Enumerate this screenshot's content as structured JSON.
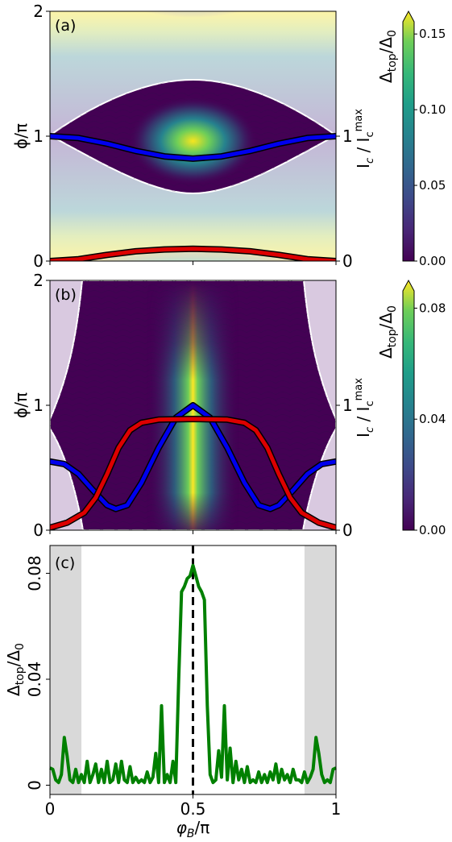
{
  "chart_data": [
    {
      "panel": "(a)",
      "type": "heatmap",
      "ylabel_left": "ϕ/π",
      "ylabel_right": "I_c / I_c^max",
      "x_range": [
        0,
        1
      ],
      "y_range": [
        0,
        2
      ],
      "y_ticks_left": [
        "0",
        "1",
        "2"
      ],
      "y_ticks_right": [
        "0",
        "1"
      ],
      "colorbar": {
        "label": "Δtop/Δ0",
        "min": 0,
        "max": 0.165,
        "ticks": [
          "0.00",
          "0.05",
          "0.10",
          "0.15"
        ],
        "tick_values": [
          0,
          0.05,
          0.1,
          0.15
        ],
        "extend": "max"
      },
      "series": [
        {
          "color": "#0000ee",
          "x": [
            0,
            0.1,
            0.2,
            0.3,
            0.4,
            0.5,
            0.6,
            0.7,
            0.8,
            0.9,
            1.0
          ],
          "y": [
            1.0,
            0.985,
            0.94,
            0.882,
            0.838,
            0.82,
            0.838,
            0.882,
            0.94,
            0.985,
            1.0
          ]
        },
        {
          "color": "#dd0000",
          "x": [
            0,
            0.1,
            0.2,
            0.3,
            0.4,
            0.5,
            0.6,
            0.7,
            0.8,
            0.9,
            1.0
          ],
          "y": [
            0.0,
            0.015,
            0.05,
            0.078,
            0.093,
            0.098,
            0.093,
            0.078,
            0.05,
            0.015,
            0.0
          ]
        }
      ]
    },
    {
      "panel": "(b)",
      "type": "heatmap",
      "ylabel_left": "ϕ/π",
      "ylabel_right": "I_c / I_c^max",
      "x_range": [
        0,
        1
      ],
      "y_range": [
        0,
        2
      ],
      "y_ticks_left": [
        "0",
        "1",
        "2"
      ],
      "y_ticks_right": [
        "0",
        "1"
      ],
      "colorbar": {
        "label": "Δtop/Δ0",
        "min": 0,
        "max": 0.09,
        "ticks": [
          "0.00",
          "0.04",
          "0.08"
        ],
        "tick_values": [
          0,
          0.04,
          0.08
        ],
        "extend": "max"
      },
      "series": [
        {
          "color": "#0000ee",
          "x": [
            0,
            0.05,
            0.1,
            0.15,
            0.2,
            0.23,
            0.27,
            0.32,
            0.38,
            0.44,
            0.5,
            0.56,
            0.62,
            0.68,
            0.73,
            0.77,
            0.8,
            0.85,
            0.9,
            0.95,
            1.0
          ],
          "y": [
            0.55,
            0.53,
            0.45,
            0.32,
            0.2,
            0.17,
            0.2,
            0.38,
            0.66,
            0.9,
            1.0,
            0.9,
            0.66,
            0.38,
            0.2,
            0.17,
            0.2,
            0.32,
            0.45,
            0.53,
            0.55
          ]
        },
        {
          "color": "#dd0000",
          "x": [
            0,
            0.06,
            0.12,
            0.16,
            0.2,
            0.24,
            0.28,
            0.32,
            0.38,
            0.5,
            0.62,
            0.68,
            0.72,
            0.76,
            0.8,
            0.84,
            0.88,
            0.94,
            1.0
          ],
          "y": [
            0.02,
            0.06,
            0.14,
            0.26,
            0.45,
            0.66,
            0.8,
            0.86,
            0.885,
            0.89,
            0.885,
            0.86,
            0.8,
            0.66,
            0.45,
            0.26,
            0.14,
            0.06,
            0.02
          ]
        }
      ]
    },
    {
      "panel": "(c)",
      "type": "line",
      "xlabel": "φB/π",
      "ylabel": "Δtop/Δ0",
      "x_range": [
        0,
        1
      ],
      "y_range": [
        -0.0035,
        0.0905
      ],
      "x_ticks": [
        "0",
        "0.5",
        "1"
      ],
      "y_ticks": [
        "0",
        "0.04",
        "0.08"
      ],
      "shaded_regions": [
        [
          0,
          0.11
        ],
        [
          0.89,
          1.0
        ]
      ],
      "vline_x": 0.5,
      "series": [
        {
          "color": "#008000",
          "x": [
            0,
            0.01,
            0.02,
            0.03,
            0.04,
            0.05,
            0.06,
            0.07,
            0.08,
            0.09,
            0.1,
            0.11,
            0.12,
            0.13,
            0.14,
            0.15,
            0.16,
            0.17,
            0.18,
            0.19,
            0.2,
            0.21,
            0.22,
            0.23,
            0.24,
            0.25,
            0.26,
            0.27,
            0.28,
            0.29,
            0.3,
            0.31,
            0.32,
            0.33,
            0.34,
            0.35,
            0.36,
            0.37,
            0.38,
            0.39,
            0.4,
            0.41,
            0.42,
            0.43,
            0.44,
            0.45,
            0.46,
            0.47,
            0.48,
            0.49,
            0.5,
            0.51,
            0.52,
            0.53,
            0.54,
            0.55,
            0.56,
            0.57,
            0.58,
            0.59,
            0.6,
            0.61,
            0.62,
            0.63,
            0.64,
            0.65,
            0.66,
            0.67,
            0.68,
            0.69,
            0.7,
            0.71,
            0.72,
            0.73,
            0.74,
            0.75,
            0.76,
            0.77,
            0.78,
            0.79,
            0.8,
            0.81,
            0.82,
            0.83,
            0.84,
            0.85,
            0.86,
            0.87,
            0.88,
            0.89,
            0.9,
            0.91,
            0.92,
            0.93,
            0.94,
            0.95,
            0.96,
            0.97,
            0.98,
            0.99,
            1.0
          ],
          "y": [
            0.0065,
            0.006,
            0.002,
            0.001,
            0.004,
            0.018,
            0.011,
            0.002,
            0.001,
            0.006,
            0.001,
            0.004,
            0.001,
            0.009,
            0.001,
            0.004,
            0.008,
            0.001,
            0.006,
            0.001,
            0.009,
            0.001,
            0.002,
            0.008,
            0.001,
            0.009,
            0.002,
            0.001,
            0.007,
            0.001,
            0.003,
            0.001,
            0.002,
            0.001,
            0.005,
            0.001,
            0.003,
            0.012,
            0.001,
            0.03,
            0.001,
            0.004,
            0.001,
            0.009,
            0.001,
            0.04,
            0.073,
            0.075,
            0.078,
            0.079,
            0.083,
            0.079,
            0.075,
            0.073,
            0.07,
            0.03,
            0.004,
            0.001,
            0.002,
            0.013,
            0.003,
            0.03,
            0.002,
            0.014,
            0.001,
            0.009,
            0.002,
            0.006,
            0.001,
            0.007,
            0.001,
            0.002,
            0.001,
            0.005,
            0.001,
            0.004,
            0.001,
            0.005,
            0.002,
            0.008,
            0.001,
            0.006,
            0.002,
            0.004,
            0.001,
            0.006,
            0.002,
            0.002,
            0.001,
            0.005,
            0.001,
            0.003,
            0.006,
            0.018,
            0.012,
            0.004,
            0.001,
            0.002,
            0.001,
            0.006,
            0.0065
          ]
        }
      ]
    }
  ]
}
